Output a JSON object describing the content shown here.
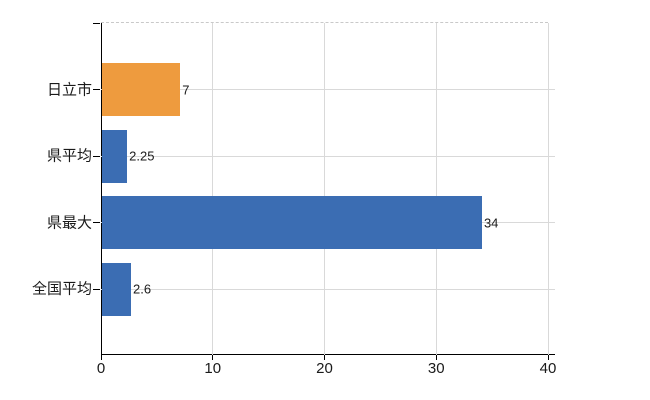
{
  "chart_data": {
    "type": "bar",
    "orientation": "horizontal",
    "title": "",
    "xlabel": "",
    "ylabel": "",
    "categories": [
      "日立市",
      "県平均",
      "県最大",
      "全国平均"
    ],
    "values": [
      7,
      2.25,
      34,
      2.6
    ],
    "value_labels": [
      "7",
      "2.25",
      "34",
      "2.6"
    ],
    "bar_colors": [
      "#ee9b3e",
      "#3b6db3",
      "#3b6db3",
      "#3b6db3"
    ],
    "xlim": [
      0,
      40
    ],
    "x_ticks": [
      0,
      10,
      20,
      30,
      40
    ],
    "x_tick_labels": [
      "0",
      "10",
      "20",
      "30",
      "40"
    ],
    "grid": "on",
    "legend": "none",
    "colors": {
      "highlight_bar": "#ee9b3e",
      "default_bar": "#3b6db3",
      "gridline": "#d9d9d9",
      "plot_top_border": "#c9c9c9",
      "axis": "#000000",
      "text": "#1a1a1a",
      "background": "#ffffff"
    }
  }
}
